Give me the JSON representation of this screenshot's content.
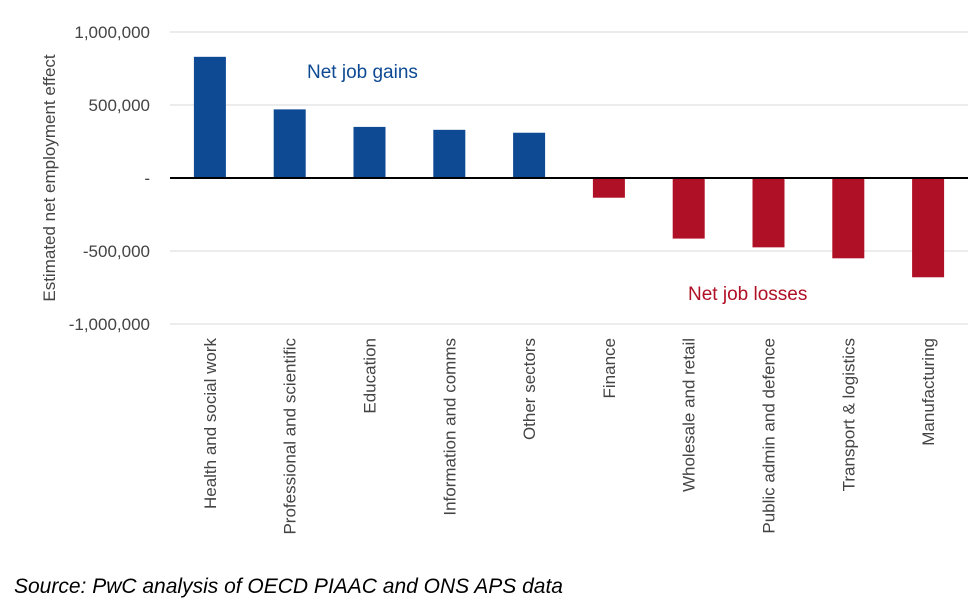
{
  "chart_data": {
    "type": "bar",
    "ylabel": "Estimated net employment effect",
    "categories": [
      "Health and social work",
      "Professional and scientific",
      "Education",
      "Information and comms",
      "Other sectors",
      "Finance",
      "Wholesale and retail",
      "Public admin and defence",
      "Transport & logistics",
      "Manufacturing"
    ],
    "values": [
      830000,
      470000,
      350000,
      330000,
      310000,
      -135000,
      -415000,
      -475000,
      -550000,
      -680000
    ],
    "ylim": [
      -1000000,
      1000000
    ],
    "yticks": [
      1000000,
      500000,
      0,
      -500000,
      -1000000
    ],
    "ytick_labels": [
      "1,000,000",
      "500,000",
      "-",
      "-500,000",
      "-1,000,000"
    ],
    "grid": true,
    "colors": {
      "gain": "#0e4a93",
      "loss": "#b01025"
    },
    "annotations": {
      "gains": "Net job gains",
      "losses": "Net job losses"
    }
  },
  "source": "Source: PwC analysis of OECD PIAAC and ONS APS data"
}
